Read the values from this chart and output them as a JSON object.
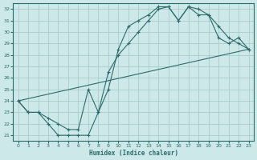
{
  "xlabel": "Humidex (Indice chaleur)",
  "bg_color": "#cce8e8",
  "grid_color": "#aacccc",
  "line_color": "#2d6b6b",
  "xlim": [
    -0.5,
    23.5
  ],
  "ylim": [
    20.5,
    32.5
  ],
  "yticks": [
    21,
    22,
    23,
    24,
    25,
    26,
    27,
    28,
    29,
    30,
    31,
    32
  ],
  "xticks": [
    0,
    1,
    2,
    3,
    4,
    5,
    6,
    7,
    8,
    9,
    10,
    11,
    12,
    13,
    14,
    15,
    16,
    17,
    18,
    19,
    20,
    21,
    22,
    23
  ],
  "line1_x": [
    0,
    1,
    2,
    3,
    4,
    5,
    6,
    7,
    8,
    9,
    10,
    11,
    12,
    13,
    14,
    15,
    16,
    17,
    18,
    19,
    20,
    21,
    22,
    23
  ],
  "line1_y": [
    24.0,
    23.0,
    23.0,
    22.0,
    21.0,
    21.0,
    21.0,
    21.0,
    23.0,
    25.0,
    28.5,
    30.5,
    31.0,
    31.5,
    32.2,
    32.2,
    31.0,
    32.2,
    32.0,
    31.5,
    30.5,
    29.5,
    29.0,
    28.5
  ],
  "line2_x": [
    0,
    1,
    2,
    3,
    4,
    5,
    6,
    7,
    8,
    9,
    10,
    11,
    12,
    13,
    14,
    15,
    16,
    17,
    18,
    19,
    20,
    21,
    22,
    23
  ],
  "line2_y": [
    24.0,
    23.0,
    23.0,
    22.5,
    22.0,
    21.5,
    21.5,
    25.0,
    23.0,
    26.5,
    28.0,
    29.0,
    30.0,
    31.0,
    32.0,
    32.2,
    31.0,
    32.2,
    31.5,
    31.5,
    29.5,
    29.0,
    29.5,
    28.5
  ],
  "line3_x": [
    0,
    23
  ],
  "line3_y": [
    24.0,
    28.5
  ]
}
